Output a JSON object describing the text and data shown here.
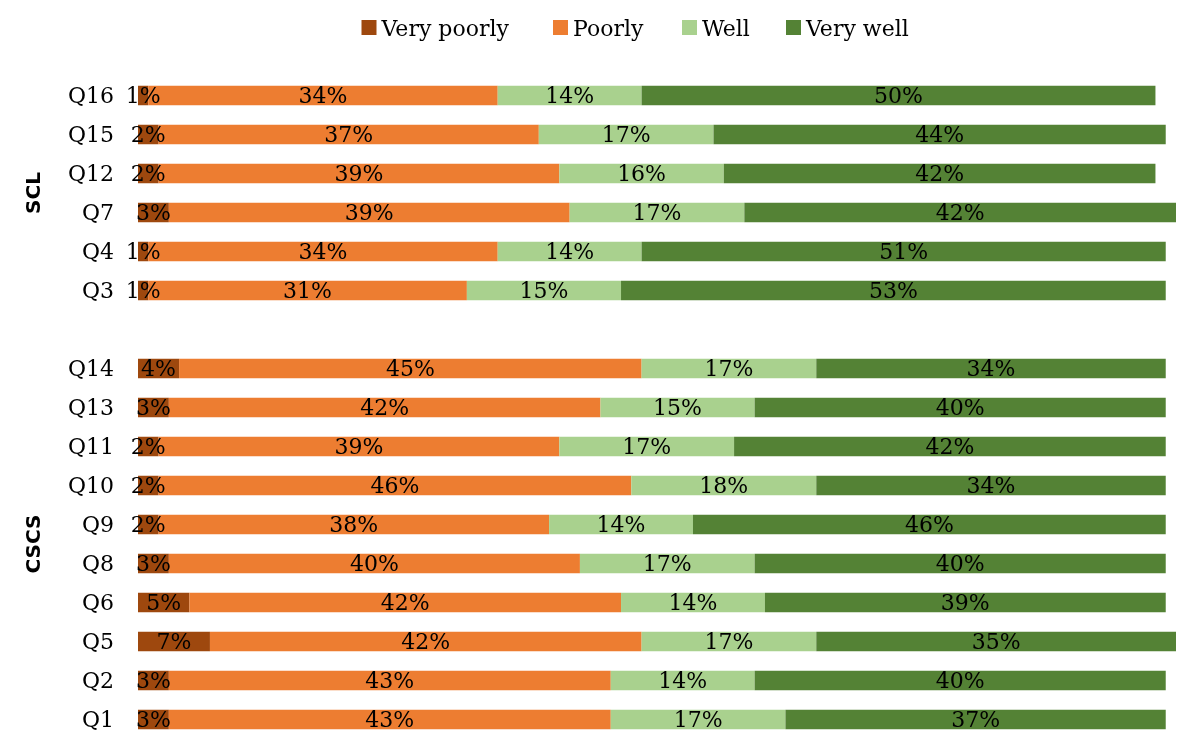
{
  "chart_data": {
    "type": "bar",
    "orientation": "horizontal",
    "stacked": true,
    "legend": "top",
    "tick_labels": "y",
    "categories": [
      "Q16",
      "Q15",
      "Q12",
      "Q7",
      "Q4",
      "Q3",
      null,
      "Q14",
      "Q13",
      "Q11",
      "Q10",
      "Q9",
      "Q8",
      "Q6",
      "Q5",
      "Q2",
      "Q1"
    ],
    "annotations": [
      "SCL",
      "CSCS"
    ],
    "series": [
      {
        "name": "Very poorly",
        "color": "#9e480e",
        "values": [
          1,
          2,
          2,
          3,
          1,
          1,
          null,
          4,
          3,
          2,
          2,
          2,
          3,
          5,
          7,
          3,
          3
        ],
        "value_labels": [
          "1%",
          "2%",
          "2%",
          "3%",
          "1%",
          "1%",
          null,
          "4%",
          "3%",
          "2%",
          "2%",
          "2%",
          "3%",
          "5%",
          "7%",
          "3%",
          "3%"
        ]
      },
      {
        "name": "Poorly",
        "color": "#ed7d31",
        "values": [
          34,
          37,
          39,
          39,
          34,
          31,
          null,
          45,
          42,
          39,
          46,
          38,
          40,
          42,
          42,
          43,
          43
        ],
        "value_labels": [
          "34%",
          "37%",
          "39%",
          "39%",
          "34%",
          "31%",
          null,
          "45%",
          "42%",
          "39%",
          "46%",
          "38%",
          "40%",
          "42%",
          "42%",
          "43%",
          "43%"
        ]
      },
      {
        "name": "Well",
        "color": "#a9d18e",
        "values": [
          14,
          17,
          16,
          17,
          14,
          15,
          null,
          17,
          15,
          17,
          18,
          14,
          17,
          14,
          17,
          14,
          17
        ],
        "value_labels": [
          "14%",
          "17%",
          "16%",
          "17%",
          "14%",
          "15%",
          null,
          "17%",
          "15%",
          "17%",
          "18%",
          "14%",
          "17%",
          "14%",
          "17%",
          "14%",
          "17%"
        ]
      },
      {
        "name": "Very well",
        "color": "#548235",
        "values": [
          50,
          44,
          42,
          42,
          51,
          53,
          null,
          34,
          40,
          42,
          34,
          46,
          40,
          39,
          35,
          40,
          37
        ],
        "value_labels": [
          "50%",
          "44%",
          "42%",
          "42%",
          "51%",
          "53%",
          null,
          "34%",
          "40%",
          "42%",
          "34%",
          "46%",
          "40%",
          "39%",
          "35%",
          "40%",
          "37%"
        ]
      }
    ]
  }
}
